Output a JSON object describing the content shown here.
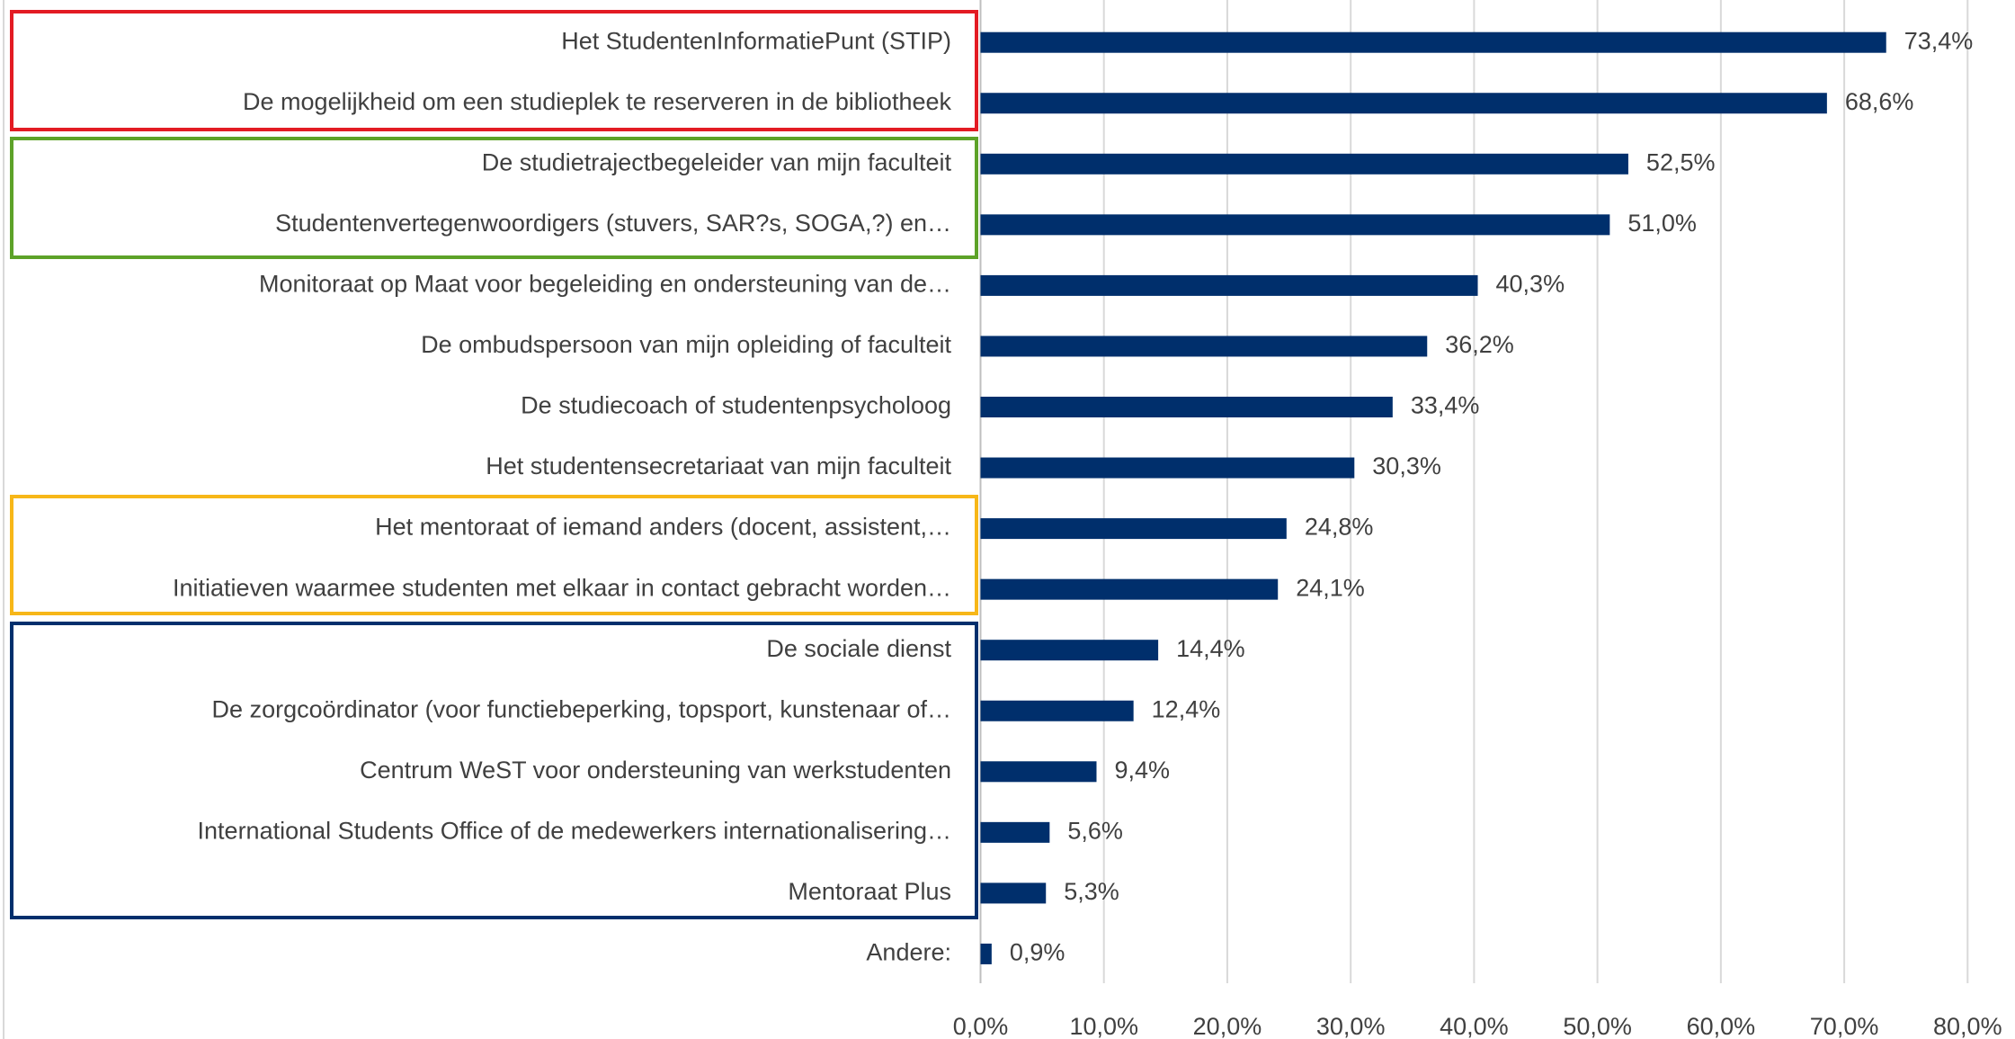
{
  "chart_data": {
    "type": "barh",
    "categories": [
      "Het StudentenInformatiePunt (STIP)",
      "De mogelijkheid om een studieplek te reserveren in de bibliotheek",
      "De studietrajectbegeleider van mijn faculteit",
      "Studentenvertegenwoordigers (stuvers, SAR?s, SOGA,?) en…",
      "Monitoraat op Maat voor begeleiding en ondersteuning van de…",
      "De ombudspersoon van mijn opleiding of faculteit",
      "De studiecoach of studentenpsycholoog",
      "Het studentensecretariaat van mijn faculteit",
      "Het mentoraat of iemand anders (docent, assistent,…",
      "Initiatieven waarmee studenten met elkaar in contact gebracht worden…",
      "De sociale dienst",
      "De zorgcoördinator (voor functiebeperking, topsport, kunstenaar of…",
      "Centrum WeST voor ondersteuning van werkstudenten",
      "International Students Office of de medewerkers internationalisering…",
      "Mentoraat Plus",
      "Andere:"
    ],
    "values": [
      73.4,
      68.6,
      52.5,
      51.0,
      40.3,
      36.2,
      33.4,
      30.3,
      24.8,
      24.1,
      14.4,
      12.4,
      9.4,
      5.6,
      5.3,
      0.9
    ],
    "value_labels": [
      "73,4%",
      "68,6%",
      "52,5%",
      "51,0%",
      "40,3%",
      "36,2%",
      "33,4%",
      "30,3%",
      "24,8%",
      "24,1%",
      "14,4%",
      "12,4%",
      "9,4%",
      "5,6%",
      "5,3%",
      "0,9%"
    ],
    "color": "#002f6c",
    "xlim": [
      0,
      80
    ],
    "xticks": [
      {
        "value": 0,
        "label": "0,0%"
      },
      {
        "value": 10,
        "label": "10,0%"
      },
      {
        "value": 20,
        "label": "20,0%"
      },
      {
        "value": 30,
        "label": "30,0%"
      },
      {
        "value": 40,
        "label": "40,0%"
      },
      {
        "value": 50,
        "label": "50,0%"
      },
      {
        "value": 60,
        "label": "60,0%"
      },
      {
        "value": 70,
        "label": "70,0%"
      },
      {
        "value": 80,
        "label": "80,0%"
      }
    ],
    "grid": true
  }
}
